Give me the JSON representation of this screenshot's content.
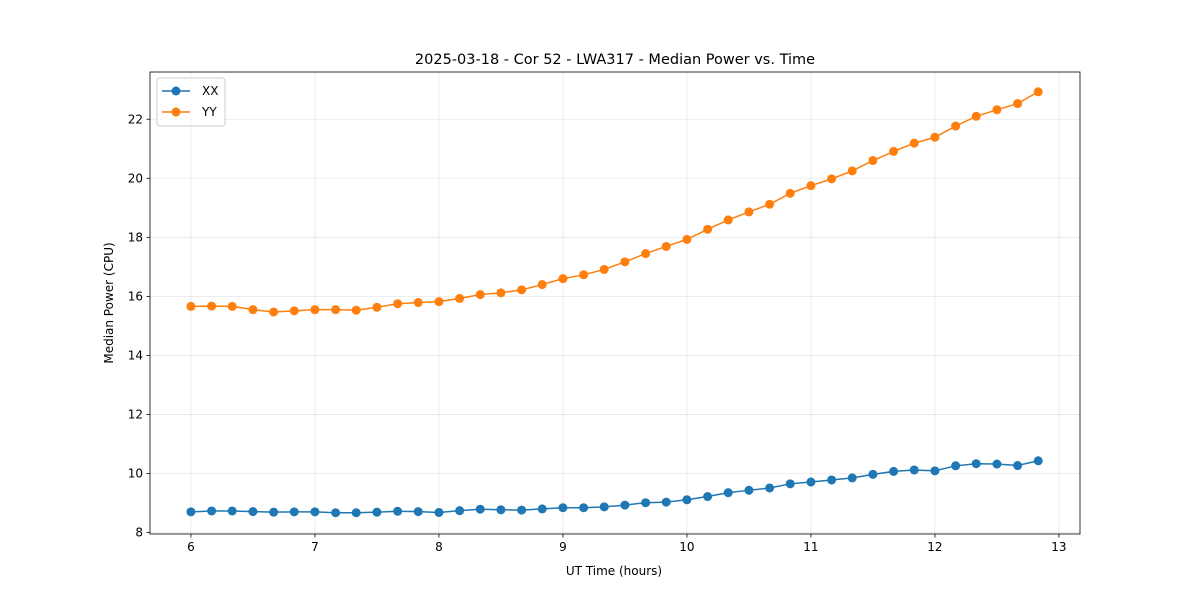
{
  "chart_data": {
    "type": "line",
    "title": "2025-03-18 - Cor 52 - LWA317 - Median Power vs. Time",
    "xlabel": "UT Time (hours)",
    "ylabel": "Median Power (CPU)",
    "xlim": [
      5.67,
      13.17
    ],
    "ylim": [
      7.95,
      23.6
    ],
    "xticks": [
      6,
      7,
      8,
      9,
      10,
      11,
      12,
      13
    ],
    "yticks": [
      8,
      10,
      12,
      14,
      16,
      18,
      20,
      22
    ],
    "grid": true,
    "legend_position": "top-left",
    "x": [
      6.0,
      6.167,
      6.333,
      6.5,
      6.667,
      6.833,
      7.0,
      7.167,
      7.333,
      7.5,
      7.667,
      7.833,
      8.0,
      8.167,
      8.333,
      8.5,
      8.667,
      8.833,
      9.0,
      9.167,
      9.333,
      9.5,
      9.667,
      9.833,
      10.0,
      10.167,
      10.333,
      10.5,
      10.667,
      10.833,
      11.0,
      11.167,
      11.333,
      11.5,
      11.667,
      11.833,
      12.0,
      12.167,
      12.333,
      12.5,
      12.667,
      12.833
    ],
    "series": [
      {
        "name": "XX",
        "color": "#1f77b4",
        "values": [
          8.7,
          8.73,
          8.73,
          8.71,
          8.69,
          8.7,
          8.7,
          8.67,
          8.67,
          8.69,
          8.72,
          8.71,
          8.68,
          8.74,
          8.79,
          8.77,
          8.76,
          8.8,
          8.84,
          8.84,
          8.87,
          8.93,
          9.01,
          9.03,
          9.11,
          9.22,
          9.35,
          9.43,
          9.51,
          9.65,
          9.71,
          9.78,
          9.85,
          9.97,
          10.07,
          10.12,
          10.09,
          10.26,
          10.33,
          10.32,
          10.27,
          10.43
        ]
      },
      {
        "name": "YY",
        "color": "#ff7f0e",
        "values": [
          15.66,
          15.67,
          15.66,
          15.55,
          15.47,
          15.51,
          15.55,
          15.55,
          15.53,
          15.63,
          15.75,
          15.79,
          15.82,
          15.93,
          16.06,
          16.12,
          16.22,
          16.4,
          16.6,
          16.73,
          16.91,
          17.17,
          17.45,
          17.69,
          17.93,
          18.27,
          18.59,
          18.86,
          19.12,
          19.49,
          19.75,
          19.98,
          20.25,
          20.6,
          20.91,
          21.19,
          21.39,
          21.77,
          22.1,
          22.32,
          22.53,
          22.93
        ]
      }
    ]
  }
}
